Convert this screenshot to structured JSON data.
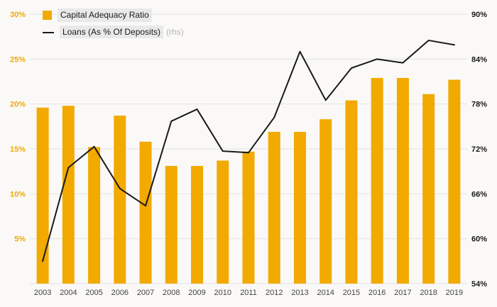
{
  "chart_data": {
    "type": "bar",
    "subtype": "combo-bar-line",
    "background": "#faf9f7",
    "grid": true,
    "legend_position": "top-left",
    "legend_chip_color": "#e9e9e9",
    "categories": [
      "2003",
      "2004",
      "2005",
      "2006",
      "2007",
      "2008",
      "2009",
      "2010",
      "2011",
      "2012",
      "2013",
      "2014",
      "2015",
      "2016",
      "2017",
      "2018",
      "2019"
    ],
    "series": [
      {
        "name": "Capital Adequacy Ratio",
        "type": "bar",
        "axis": "left",
        "color": "#F2A900",
        "values": [
          19.6,
          19.8,
          15.2,
          18.7,
          15.8,
          13.1,
          13.1,
          13.7,
          14.7,
          16.9,
          16.9,
          18.3,
          20.4,
          22.9,
          22.9,
          21.1,
          22.7
        ]
      },
      {
        "name": "Loans (As % Of Deposits)",
        "suffix": "(rhs)",
        "type": "line",
        "axis": "right",
        "color": "#1a1a1a",
        "values": [
          57.0,
          69.5,
          72.3,
          66.7,
          64.4,
          75.7,
          77.3,
          71.7,
          71.5,
          76.2,
          85.0,
          78.5,
          82.8,
          84.0,
          83.5,
          86.5,
          85.9
        ]
      }
    ],
    "left_axis": {
      "min": 0,
      "max": 30,
      "step": 5,
      "tick_labels": [
        "5%",
        "10%",
        "15%",
        "20%",
        "25%",
        "30%"
      ],
      "color": "#F2A900"
    },
    "right_axis": {
      "min": 54,
      "max": 90,
      "step": 6,
      "tick_labels": [
        "54%",
        "60%",
        "66%",
        "72%",
        "78%",
        "84%",
        "90%"
      ],
      "color": "#1a1a1a"
    },
    "x_axis": {
      "color": "#444444"
    }
  }
}
